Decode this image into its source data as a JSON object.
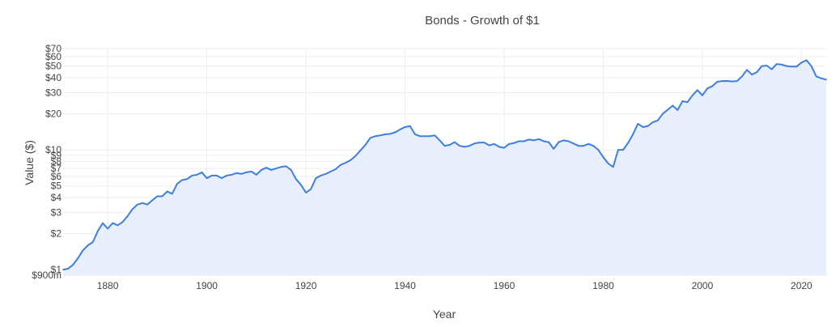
{
  "chart_data": {
    "type": "area",
    "title": "Bonds - Growth of $1",
    "xlabel": "Year",
    "ylabel": "Value ($)",
    "y_scale": "log",
    "xlim": [
      1871,
      2025
    ],
    "ylim": [
      0.9,
      70
    ],
    "x_ticks": [
      1880,
      1900,
      1920,
      1940,
      1960,
      1980,
      2000,
      2020
    ],
    "y_ticks": [
      {
        "value": 0.9,
        "label": "$900m"
      },
      {
        "value": 1,
        "label": "$1"
      },
      {
        "value": 2,
        "label": "$2"
      },
      {
        "value": 3,
        "label": "$3"
      },
      {
        "value": 4,
        "label": "$4"
      },
      {
        "value": 5,
        "label": "$5"
      },
      {
        "value": 6,
        "label": "$6"
      },
      {
        "value": 7,
        "label": "$7"
      },
      {
        "value": 8,
        "label": "$8"
      },
      {
        "value": 9,
        "label": "$9"
      },
      {
        "value": 10,
        "label": "$10"
      },
      {
        "value": 20,
        "label": "$20"
      },
      {
        "value": 30,
        "label": "$30"
      },
      {
        "value": 40,
        "label": "$40"
      },
      {
        "value": 50,
        "label": "$50"
      },
      {
        "value": 60,
        "label": "$60"
      },
      {
        "value": 70,
        "label": "$70"
      }
    ],
    "grid": true,
    "line_color": "#3d7fe0",
    "fill_color": "#e8eefb",
    "grid_color": "#eeeeee",
    "series": [
      {
        "x": [
          1871,
          1872,
          1873,
          1874,
          1875,
          1876,
          1877,
          1878,
          1879,
          1880,
          1881,
          1882,
          1883,
          1884,
          1885,
          1886,
          1887,
          1888,
          1889,
          1890,
          1891,
          1892,
          1893,
          1894,
          1895,
          1896,
          1897,
          1898,
          1899,
          1900,
          1901,
          1902,
          1903,
          1904,
          1905,
          1906,
          1907,
          1908,
          1909,
          1910,
          1911,
          1912,
          1913,
          1914,
          1915,
          1916,
          1917,
          1918,
          1919,
          1920,
          1921,
          1922,
          1923,
          1924,
          1925,
          1926,
          1927,
          1928,
          1929,
          1930,
          1931,
          1932,
          1933,
          1934,
          1935,
          1936,
          1937,
          1938,
          1939,
          1940,
          1941,
          1942,
          1943,
          1944,
          1945,
          1946,
          1947,
          1948,
          1949,
          1950,
          1951,
          1952,
          1953,
          1954,
          1955,
          1956,
          1957,
          1958,
          1959,
          1960,
          1961,
          1962,
          1963,
          1964,
          1965,
          1966,
          1967,
          1968,
          1969,
          1970,
          1971,
          1972,
          1973,
          1974,
          1975,
          1976,
          1977,
          1978,
          1979,
          1980,
          1981,
          1982,
          1983,
          1984,
          1985,
          1986,
          1987,
          1988,
          1989,
          1990,
          1991,
          1992,
          1993,
          1994,
          1995,
          1996,
          1997,
          1998,
          1999,
          2000,
          2001,
          2002,
          2003,
          2004,
          2005,
          2006,
          2007,
          2008,
          2009,
          2010,
          2011,
          2012,
          2013,
          2014,
          2015,
          2016,
          2017,
          2018,
          2019,
          2020,
          2021,
          2022,
          2023,
          2024,
          2025
        ],
        "values": [
          1.0,
          1.02,
          1.1,
          1.25,
          1.45,
          1.6,
          1.7,
          2.1,
          2.45,
          2.2,
          2.45,
          2.35,
          2.5,
          2.8,
          3.2,
          3.5,
          3.6,
          3.5,
          3.8,
          4.1,
          4.1,
          4.5,
          4.3,
          5.2,
          5.6,
          5.7,
          6.1,
          6.2,
          6.5,
          5.8,
          6.1,
          6.1,
          5.8,
          6.1,
          6.2,
          6.4,
          6.3,
          6.5,
          6.6,
          6.2,
          6.8,
          7.1,
          6.8,
          7.0,
          7.2,
          7.3,
          6.8,
          5.7,
          5.1,
          4.4,
          4.7,
          5.8,
          6.1,
          6.3,
          6.6,
          6.9,
          7.5,
          7.8,
          8.2,
          8.9,
          9.9,
          11.0,
          12.6,
          13.0,
          13.2,
          13.5,
          13.6,
          14.0,
          14.8,
          15.5,
          15.8,
          13.5,
          13.0,
          13.0,
          13.0,
          13.2,
          12.0,
          10.8,
          11.0,
          11.6,
          10.8,
          10.6,
          10.8,
          11.3,
          11.5,
          11.5,
          10.9,
          11.2,
          10.6,
          10.4,
          11.2,
          11.4,
          11.8,
          11.8,
          12.2,
          12.0,
          12.3,
          11.8,
          11.6,
          10.2,
          11.6,
          12.0,
          11.8,
          11.3,
          10.8,
          10.8,
          11.2,
          10.8,
          10.0,
          8.7,
          7.7,
          7.2,
          10.0,
          10.0,
          11.4,
          13.5,
          16.5,
          15.5,
          15.8,
          17.0,
          17.6,
          20.0,
          21.6,
          23.4,
          21.5,
          25.5,
          25.0,
          28.5,
          31.5,
          28.5,
          32.5,
          34.0,
          37.0,
          37.5,
          37.6,
          37.2,
          37.5,
          41.0,
          46.5,
          42.5,
          44.5,
          50.0,
          50.5,
          47.0,
          52.0,
          51.5,
          50.0,
          49.5,
          49.5,
          53.5,
          56.0,
          50.0,
          41.0,
          39.5,
          38.5
        ]
      }
    ]
  }
}
